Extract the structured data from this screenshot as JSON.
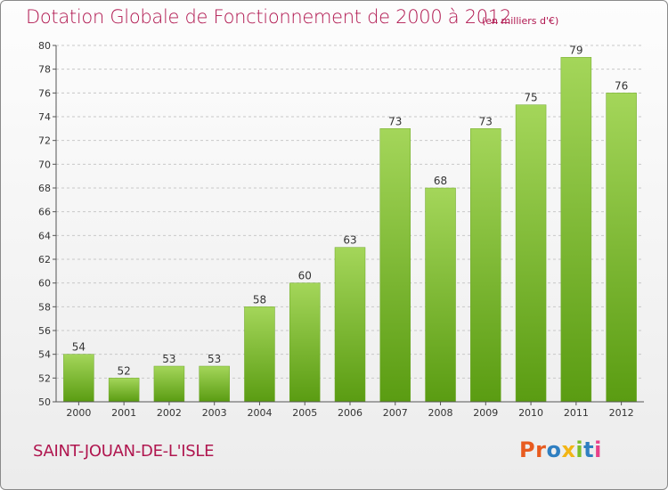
{
  "header": {
    "title": "Dotation Globale de Fonctionnement de 2000 à 2012",
    "subtitle": "(en milliers d'€)"
  },
  "footer": {
    "commune": "SAINT-JOUAN-DE-L'ISLE",
    "logo_text": "Proxiti",
    "logo_colors": [
      "#e85b1f",
      "#e85b1f",
      "#2f7fc1",
      "#f2b515",
      "#7bbf2a",
      "#2f7fc1",
      "#e8408a"
    ]
  },
  "colors": {
    "title": "#b0164f",
    "bar_light": "#a4d65a",
    "bar_dark": "#5a9c12",
    "grid": "#c8c8c8",
    "axis": "#555555"
  },
  "chart_data": {
    "type": "bar",
    "title": "Dotation Globale de Fonctionnement de 2000 à 2012",
    "subtitle": "(en milliers d'€)",
    "xlabel": "",
    "ylabel": "",
    "categories": [
      "2000",
      "2001",
      "2002",
      "2003",
      "2004",
      "2005",
      "2006",
      "2007",
      "2008",
      "2009",
      "2010",
      "2011",
      "2012"
    ],
    "values": [
      54,
      52,
      53,
      53,
      58,
      60,
      63,
      73,
      68,
      73,
      75,
      79,
      76
    ],
    "data_labels": [
      "54",
      "52",
      "53",
      "53",
      "58",
      "60",
      "63",
      "73",
      "68",
      "73",
      "75",
      "79",
      "76"
    ],
    "ylim": [
      50,
      80
    ],
    "yticks": [
      50,
      52,
      54,
      56,
      58,
      60,
      62,
      64,
      66,
      68,
      70,
      72,
      74,
      76,
      78,
      80
    ],
    "grid": true
  }
}
